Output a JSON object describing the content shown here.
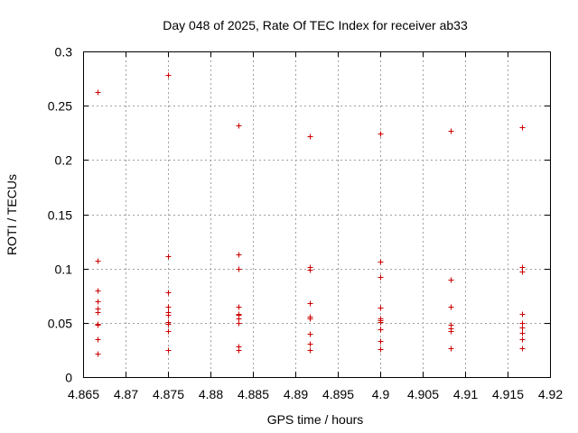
{
  "chart_data": {
    "type": "scatter",
    "title": "Day 048 of 2025, Rate Of TEC Index for receiver ab33",
    "xlabel": "GPS time / hours",
    "ylabel": "ROTI / TECUs",
    "xlim": [
      4.865,
      4.92
    ],
    "ylim": [
      0,
      0.3
    ],
    "xticks": [
      "4.865",
      "4.87",
      "4.875",
      "4.88",
      "4.885",
      "4.89",
      "4.895",
      "4.9",
      "4.905",
      "4.91",
      "4.915",
      "4.92"
    ],
    "yticks": [
      "0",
      "0.05",
      "0.1",
      "0.15",
      "0.2",
      "0.25",
      "0.3"
    ],
    "grid": true,
    "marker": "+",
    "marker_color": "#cc0000",
    "series": [
      {
        "name": "ROTI",
        "points": [
          [
            4.8667,
            0.263
          ],
          [
            4.8667,
            0.107
          ],
          [
            4.8667,
            0.08
          ],
          [
            4.8667,
            0.07
          ],
          [
            4.8667,
            0.063
          ],
          [
            4.8667,
            0.06
          ],
          [
            4.8667,
            0.049
          ],
          [
            4.8667,
            0.048
          ],
          [
            4.8667,
            0.035
          ],
          [
            4.8667,
            0.022
          ],
          [
            4.875,
            0.278
          ],
          [
            4.875,
            0.111
          ],
          [
            4.875,
            0.078
          ],
          [
            4.875,
            0.065
          ],
          [
            4.875,
            0.06
          ],
          [
            4.875,
            0.057
          ],
          [
            4.875,
            0.051
          ],
          [
            4.875,
            0.049
          ],
          [
            4.875,
            0.042
          ],
          [
            4.875,
            0.025
          ],
          [
            4.8833,
            0.232
          ],
          [
            4.8833,
            0.113
          ],
          [
            4.8833,
            0.1
          ],
          [
            4.8833,
            0.065
          ],
          [
            4.8833,
            0.058
          ],
          [
            4.8833,
            0.057
          ],
          [
            4.8833,
            0.054
          ],
          [
            4.8833,
            0.05
          ],
          [
            4.8833,
            0.028
          ],
          [
            4.8833,
            0.025
          ],
          [
            4.8917,
            0.222
          ],
          [
            4.8917,
            0.101
          ],
          [
            4.8917,
            0.099
          ],
          [
            4.8917,
            0.068
          ],
          [
            4.8917,
            0.056
          ],
          [
            4.8917,
            0.054
          ],
          [
            4.8917,
            0.04
          ],
          [
            4.8917,
            0.031
          ],
          [
            4.8917,
            0.025
          ],
          [
            4.9,
            0.224
          ],
          [
            4.9,
            0.106
          ],
          [
            4.9,
            0.092
          ],
          [
            4.9,
            0.064
          ],
          [
            4.9,
            0.054
          ],
          [
            4.9,
            0.052
          ],
          [
            4.9,
            0.051
          ],
          [
            4.9,
            0.044
          ],
          [
            4.9,
            0.033
          ],
          [
            4.9,
            0.026
          ],
          [
            4.9083,
            0.227
          ],
          [
            4.9083,
            0.09
          ],
          [
            4.9083,
            0.065
          ],
          [
            4.9083,
            0.048
          ],
          [
            4.9083,
            0.045
          ],
          [
            4.9083,
            0.042
          ],
          [
            4.9083,
            0.027
          ],
          [
            4.9167,
            0.23
          ],
          [
            4.9167,
            0.101
          ],
          [
            4.9167,
            0.097
          ],
          [
            4.9167,
            0.058
          ],
          [
            4.9167,
            0.05
          ],
          [
            4.9167,
            0.046
          ],
          [
            4.9167,
            0.041
          ],
          [
            4.9167,
            0.035
          ],
          [
            4.9167,
            0.027
          ]
        ]
      }
    ]
  }
}
